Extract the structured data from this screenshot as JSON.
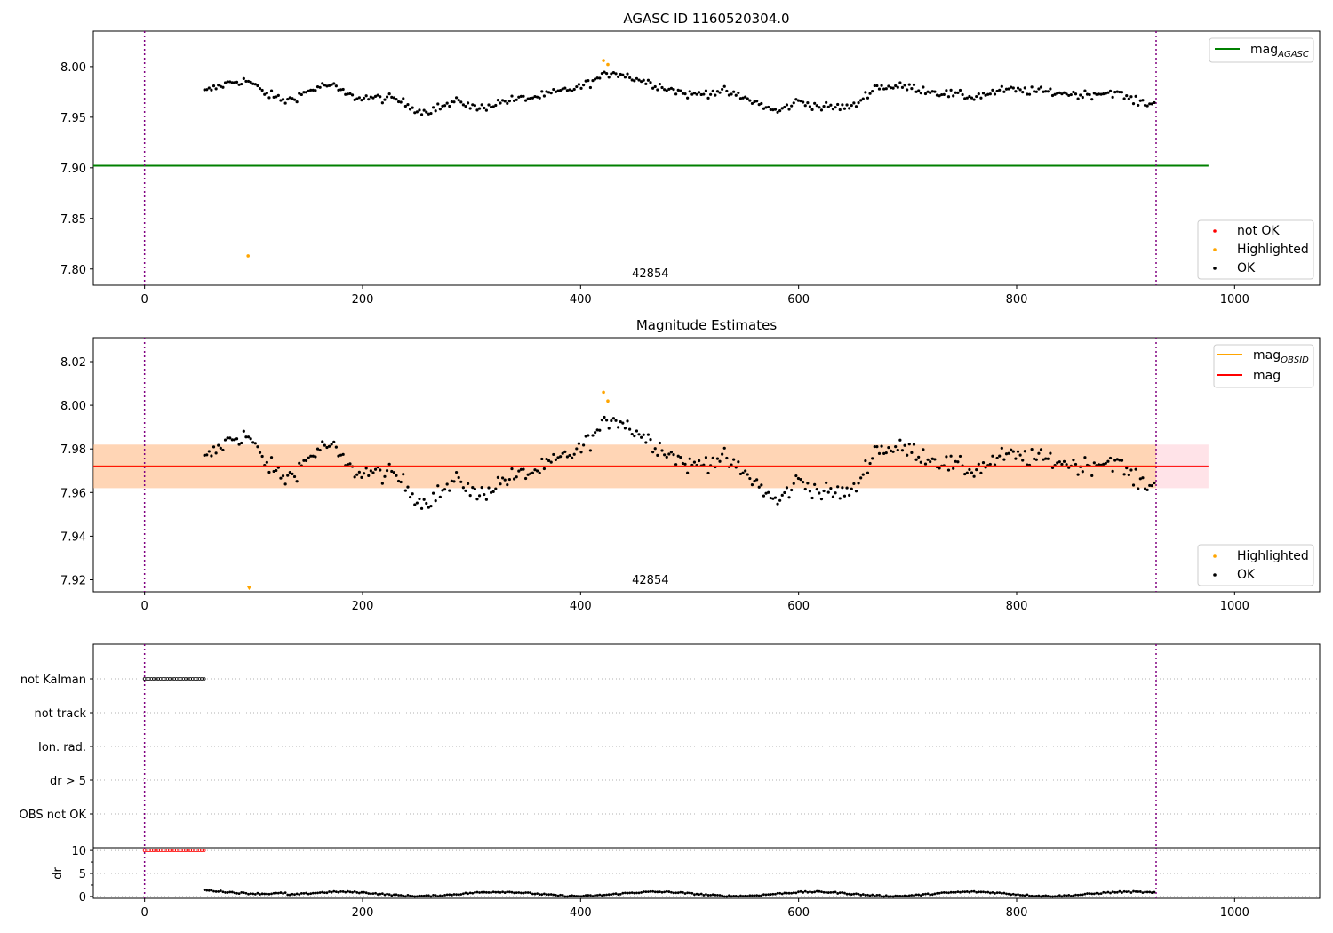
{
  "chart_data": [
    {
      "type": "scatter",
      "title": "AGASC ID 1160520304.0",
      "xlabel": "",
      "ylabel": "",
      "xlim": [
        -47,
        1078
      ],
      "ylim": [
        7.784,
        8.035
      ],
      "xticks": [
        0,
        200,
        400,
        600,
        800,
        1000
      ],
      "yticks": [
        7.8,
        7.85,
        7.9,
        7.95,
        8.0
      ],
      "ytick_labels": [
        "7.80",
        "7.85",
        "7.90",
        "7.95",
        "8.00"
      ],
      "grid": false,
      "obsid_label": "42854",
      "obsid_label_x": 464,
      "vlines": [
        0,
        928
      ],
      "hline": {
        "name": "mag",
        "subscript": "AGASC",
        "value": 7.902,
        "x_range": [
          -47,
          976
        ],
        "color": "#008000"
      },
      "series": [
        {
          "name": "not OK",
          "color": "#ff0000",
          "points": []
        },
        {
          "name": "Highlighted",
          "color": "#ffa500",
          "points": [
            [
              95,
              7.813
            ],
            [
              421,
              8.006
            ],
            [
              425,
              8.002
            ]
          ]
        },
        {
          "name": "OK",
          "color": "#000000",
          "trend": "magnitude_curve",
          "x_range": [
            55,
            928
          ],
          "step": 2.12
        }
      ],
      "legends": [
        {
          "position": "upper right",
          "entries": [
            {
              "label": "mag",
              "subscript": "AGASC",
              "kind": "line",
              "color": "#008000"
            }
          ]
        },
        {
          "position": "lower right",
          "entries": [
            {
              "label": "not OK",
              "kind": "dot",
              "color": "#ff0000"
            },
            {
              "label": "Highlighted",
              "kind": "dot",
              "color": "#ffa500"
            },
            {
              "label": "OK",
              "kind": "dot",
              "color": "#000000"
            }
          ]
        }
      ]
    },
    {
      "type": "scatter",
      "title": "Magnitude Estimates",
      "xlabel": "",
      "ylabel": "",
      "xlim": [
        -47,
        1078
      ],
      "ylim": [
        7.9145,
        8.031
      ],
      "xticks": [
        0,
        200,
        400,
        600,
        800,
        1000
      ],
      "yticks": [
        7.92,
        7.94,
        7.96,
        7.98,
        8.0,
        8.02
      ],
      "ytick_labels": [
        "7.92",
        "7.94",
        "7.96",
        "7.98",
        "8.00",
        "8.02"
      ],
      "grid": false,
      "obsid_label": "42854",
      "obsid_label_x": 464,
      "vlines": [
        0,
        928
      ],
      "mag_line": {
        "value": 7.972,
        "x_range": [
          -47,
          976
        ],
        "color": "#ff0000"
      },
      "mag_obsid_line": {
        "value": 7.972,
        "x_range": [
          -47,
          928
        ],
        "color": "#ffa500"
      },
      "mag_band": {
        "low": 7.962,
        "high": 7.982,
        "x_range": [
          -47,
          976
        ],
        "color": "#ffc0cb"
      },
      "mag_obsid_band": {
        "low": 7.962,
        "high": 7.982,
        "x_range": [
          -47,
          928
        ],
        "color": "#ffa500"
      },
      "series": [
        {
          "name": "Highlighted",
          "color": "#ffa500",
          "points": [
            [
              421,
              8.006
            ],
            [
              425,
              8.002
            ]
          ],
          "clipped_low": [
            [
              96,
              7.9165
            ]
          ]
        },
        {
          "name": "OK",
          "color": "#000000",
          "trend": "magnitude_curve",
          "x_range": [
            55,
            928
          ],
          "step": 2.12
        }
      ],
      "legends": [
        {
          "position": "upper right",
          "entries": [
            {
              "label": "mag",
              "subscript": "OBSID",
              "kind": "line",
              "color": "#ffa500"
            },
            {
              "label": "mag",
              "kind": "line",
              "color": "#ff0000"
            }
          ]
        },
        {
          "position": "lower right",
          "entries": [
            {
              "label": "Highlighted",
              "kind": "dot",
              "color": "#ffa500"
            },
            {
              "label": "OK",
              "kind": "dot",
              "color": "#000000"
            }
          ]
        }
      ]
    },
    {
      "type": "scatter",
      "title": "",
      "xlim": [
        -47,
        1078
      ],
      "categories": [
        "not Kalman",
        "not track",
        "Ion. rad.",
        "dr > 5",
        "OBS not OK"
      ],
      "grid": true,
      "vlines": [
        0,
        928
      ],
      "flags": [
        {
          "category": "not Kalman",
          "x_range": [
            0,
            55
          ],
          "color": "#000000"
        }
      ]
    },
    {
      "type": "scatter",
      "title": "",
      "xlabel": "",
      "ylabel": "dr",
      "xlim": [
        -47,
        1078
      ],
      "ylim": [
        -0.4,
        10.6
      ],
      "xticks": [
        0,
        200,
        400,
        600,
        800,
        1000
      ],
      "yticks": [
        0,
        5,
        10
      ],
      "ytick_labels": [
        "0",
        "5",
        "10"
      ],
      "grid": true,
      "vlines": [
        0,
        928
      ],
      "series": [
        {
          "name": "dr clipped",
          "color": "#ff0000",
          "x_range": [
            0,
            55
          ],
          "value": 10
        },
        {
          "name": "dr",
          "color": "#000000",
          "x_range": [
            55,
            928
          ],
          "typical_range": [
            0,
            1.5
          ]
        }
      ]
    }
  ]
}
